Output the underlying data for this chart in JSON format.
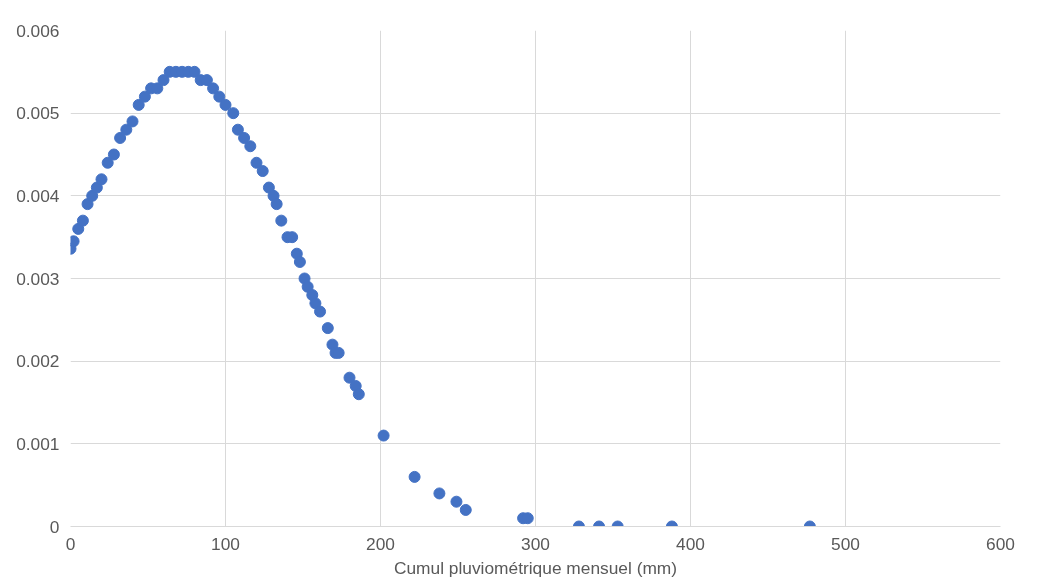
{
  "chart_data": {
    "type": "scatter",
    "xlabel": "Cumul pluviométrique mensuel (mm)",
    "x": [
      0,
      2,
      5,
      8,
      11,
      14,
      17,
      20,
      24,
      28,
      32,
      36,
      40,
      44,
      48,
      52,
      56,
      60,
      64,
      68,
      72,
      76,
      80,
      84,
      88,
      92,
      96,
      100,
      105,
      108,
      112,
      116,
      120,
      124,
      128,
      131,
      133,
      136,
      140,
      143,
      146,
      148,
      151,
      153,
      156,
      158,
      161,
      166,
      169,
      171,
      173,
      180,
      184,
      186,
      202,
      222,
      238,
      249,
      255,
      292,
      295,
      328,
      341,
      353,
      388,
      477
    ],
    "series": [
      {
        "color": "#4472c4",
        "values": [
          0.00336,
          0.00345,
          0.0036,
          0.0037,
          0.0039,
          0.004,
          0.0041,
          0.0042,
          0.0044,
          0.0045,
          0.0047,
          0.0048,
          0.0049,
          0.0051,
          0.0052,
          0.0053,
          0.0053,
          0.0054,
          0.0055,
          0.0055,
          0.0055,
          0.0055,
          0.0055,
          0.0054,
          0.0054,
          0.0053,
          0.0052,
          0.0051,
          0.005,
          0.0048,
          0.0047,
          0.0046,
          0.0044,
          0.0043,
          0.0041,
          0.004,
          0.0039,
          0.0037,
          0.0035,
          0.0035,
          0.0033,
          0.0032,
          0.003,
          0.0029,
          0.0028,
          0.0027,
          0.0026,
          0.0024,
          0.0022,
          0.0021,
          0.0021,
          0.0018,
          0.0017,
          0.0016,
          0.0011,
          0.0006,
          0.0004,
          0.0003,
          0.0002,
          0.0001,
          0.0001,
          0,
          0,
          0,
          0,
          0
        ]
      }
    ],
    "xlim": [
      0,
      600
    ],
    "xticks": [
      0,
      100,
      200,
      300,
      400,
      500,
      600
    ],
    "ylim": [
      0,
      0.006
    ],
    "yticks": [
      {
        "value": 0,
        "label": "0"
      },
      0.001,
      0.002,
      0.003,
      0.004,
      0.005,
      0.006
    ],
    "grid": true,
    "marker": "circle"
  }
}
